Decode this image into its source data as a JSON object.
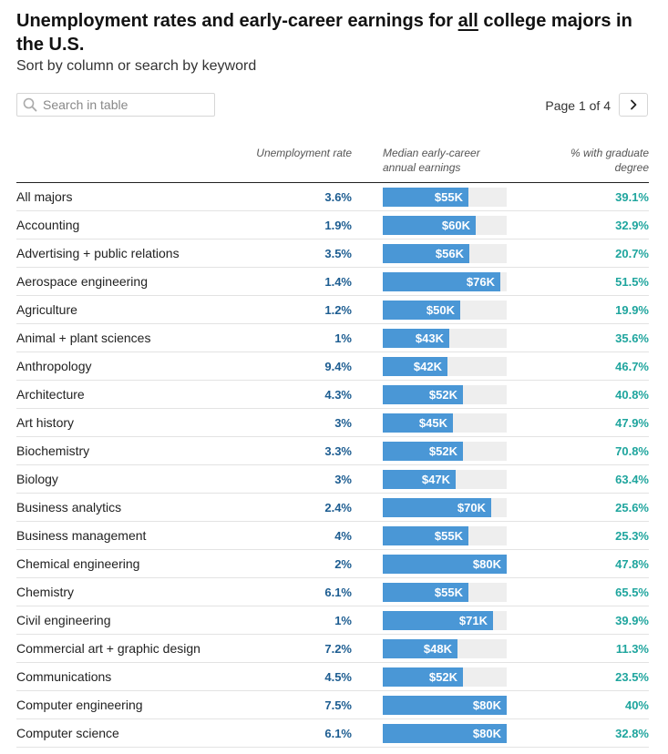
{
  "header": {
    "title_before": "Unemployment rates and early-career earnings for ",
    "title_emphasis": "all",
    "title_after": " college majors in the U.S.",
    "subtitle": "Sort by column or search by keyword"
  },
  "search": {
    "placeholder": "Search in table",
    "value": ""
  },
  "pagination": {
    "label": "Page 1 of 4",
    "next_icon": "chevron-right-icon"
  },
  "columns": {
    "major": "",
    "unemployment": "Unemployment rate",
    "earnings": "Median early-career annual earnings",
    "graduate": "% with graduate degree"
  },
  "colors": {
    "unemployment_text": "#1d5d91",
    "bar": "#4a97d6",
    "bar_track": "#eeeeee",
    "graduate_text": "#1fa59e"
  },
  "earnings_scale_max_k": 80,
  "rows": [
    {
      "major": "All majors",
      "unemployment": "3.6%",
      "earnings": "$55K",
      "earnings_k": 55,
      "graduate": "39.1%"
    },
    {
      "major": "Accounting",
      "unemployment": "1.9%",
      "earnings": "$60K",
      "earnings_k": 60,
      "graduate": "32.9%"
    },
    {
      "major": "Advertising + public relations",
      "unemployment": "3.5%",
      "earnings": "$56K",
      "earnings_k": 56,
      "graduate": "20.7%"
    },
    {
      "major": "Aerospace engineering",
      "unemployment": "1.4%",
      "earnings": "$76K",
      "earnings_k": 76,
      "graduate": "51.5%"
    },
    {
      "major": "Agriculture",
      "unemployment": "1.2%",
      "earnings": "$50K",
      "earnings_k": 50,
      "graduate": "19.9%"
    },
    {
      "major": "Animal + plant sciences",
      "unemployment": "1%",
      "earnings": "$43K",
      "earnings_k": 43,
      "graduate": "35.6%"
    },
    {
      "major": "Anthropology",
      "unemployment": "9.4%",
      "earnings": "$42K",
      "earnings_k": 42,
      "graduate": "46.7%"
    },
    {
      "major": "Architecture",
      "unemployment": "4.3%",
      "earnings": "$52K",
      "earnings_k": 52,
      "graduate": "40.8%"
    },
    {
      "major": "Art history",
      "unemployment": "3%",
      "earnings": "$45K",
      "earnings_k": 45,
      "graduate": "47.9%"
    },
    {
      "major": "Biochemistry",
      "unemployment": "3.3%",
      "earnings": "$52K",
      "earnings_k": 52,
      "graduate": "70.8%"
    },
    {
      "major": "Biology",
      "unemployment": "3%",
      "earnings": "$47K",
      "earnings_k": 47,
      "graduate": "63.4%"
    },
    {
      "major": "Business analytics",
      "unemployment": "2.4%",
      "earnings": "$70K",
      "earnings_k": 70,
      "graduate": "25.6%"
    },
    {
      "major": "Business management",
      "unemployment": "4%",
      "earnings": "$55K",
      "earnings_k": 55,
      "graduate": "25.3%"
    },
    {
      "major": "Chemical engineering",
      "unemployment": "2%",
      "earnings": "$80K",
      "earnings_k": 80,
      "graduate": "47.8%"
    },
    {
      "major": "Chemistry",
      "unemployment": "6.1%",
      "earnings": "$55K",
      "earnings_k": 55,
      "graduate": "65.5%"
    },
    {
      "major": "Civil engineering",
      "unemployment": "1%",
      "earnings": "$71K",
      "earnings_k": 71,
      "graduate": "39.9%"
    },
    {
      "major": "Commercial art + graphic design",
      "unemployment": "7.2%",
      "earnings": "$48K",
      "earnings_k": 48,
      "graduate": "11.3%"
    },
    {
      "major": "Communications",
      "unemployment": "4.5%",
      "earnings": "$52K",
      "earnings_k": 52,
      "graduate": "23.5%"
    },
    {
      "major": "Computer engineering",
      "unemployment": "7.5%",
      "earnings": "$80K",
      "earnings_k": 80,
      "graduate": "40%"
    },
    {
      "major": "Computer science",
      "unemployment": "6.1%",
      "earnings": "$80K",
      "earnings_k": 80,
      "graduate": "32.8%"
    }
  ]
}
